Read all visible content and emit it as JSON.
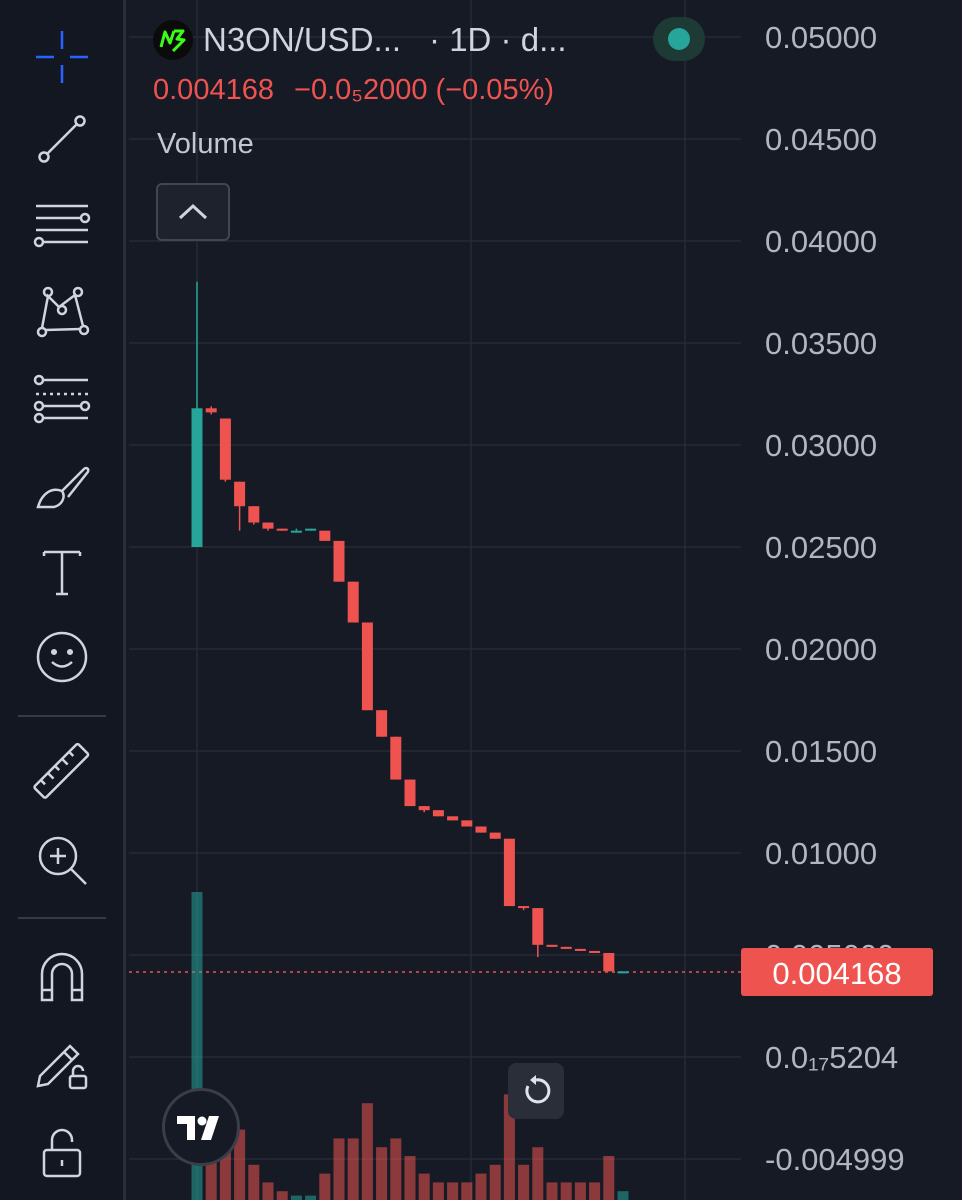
{
  "legend": {
    "symbol": "N3ON/USD...",
    "interval_text": "· 1D · d...",
    "last_price": "0.004168",
    "change": "−0.0₅2000 (−0.05%)",
    "indicator": "Volume"
  },
  "colors": {
    "background": "#161a25",
    "toolbar": "#131722",
    "up": "#26a69a",
    "down": "#ef5350",
    "grid": "#252a36",
    "axis_text": "#b2b5be"
  },
  "icons": {
    "logo": "n3on-coin-logo",
    "collapse": "chevron-up-icon",
    "reset": "reset-chart-icon",
    "brand": "tradingview-logo"
  },
  "toolbar": [
    {
      "name": "crosshair-icon"
    },
    {
      "name": "trend-line-icon"
    },
    {
      "name": "horizontal-lines-icon"
    },
    {
      "name": "pattern-icon"
    },
    {
      "name": "fib-retracement-icon"
    },
    {
      "name": "brush-icon"
    },
    {
      "name": "text-icon"
    },
    {
      "name": "emoji-icon"
    },
    {
      "name": "ruler-icon"
    },
    {
      "name": "zoom-in-icon"
    },
    {
      "name": "magnet-icon"
    },
    {
      "name": "lock-drawings-icon"
    },
    {
      "name": "lock-icon"
    }
  ],
  "chart_data": {
    "type": "candlestick",
    "y_ticks": [
      "0.05000",
      "0.04500",
      "0.04000",
      "0.03500",
      "0.03000",
      "0.02500",
      "0.02000",
      "0.01500",
      "0.01000",
      "0.005000",
      "0.0₁₇5204",
      "-0.004999"
    ],
    "ylim": [
      -0.004999,
      0.05
    ],
    "last_price_label": "0.004168",
    "last_price": 0.004168,
    "grid": true,
    "candles": [
      {
        "o": 0.025,
        "h": 0.038,
        "l": 0.025,
        "c": 0.0318,
        "v": 0.35
      },
      {
        "o": 0.0318,
        "h": 0.0319,
        "l": 0.0315,
        "c": 0.0316,
        "v": 0.05
      },
      {
        "o": 0.0313,
        "h": 0.0313,
        "l": 0.0282,
        "c": 0.0283,
        "v": 0.07
      },
      {
        "o": 0.0282,
        "h": 0.0282,
        "l": 0.0258,
        "c": 0.027,
        "v": 0.08
      },
      {
        "o": 0.027,
        "h": 0.027,
        "l": 0.0261,
        "c": 0.0262,
        "v": 0.04
      },
      {
        "o": 0.0262,
        "h": 0.0262,
        "l": 0.0258,
        "c": 0.0259,
        "v": 0.02
      },
      {
        "o": 0.0259,
        "h": 0.0259,
        "l": 0.0258,
        "c": 0.0258,
        "v": 0.01
      },
      {
        "o": 0.0258,
        "h": 0.0259,
        "l": 0.0258,
        "c": 0.0258,
        "v": 0.005
      },
      {
        "o": 0.0258,
        "h": 0.0259,
        "l": 0.0258,
        "c": 0.0259,
        "v": 0.005
      },
      {
        "o": 0.0258,
        "h": 0.0258,
        "l": 0.0253,
        "c": 0.0253,
        "v": 0.03
      },
      {
        "o": 0.0253,
        "h": 0.0253,
        "l": 0.0233,
        "c": 0.0233,
        "v": 0.07
      },
      {
        "o": 0.0233,
        "h": 0.0233,
        "l": 0.0213,
        "c": 0.0213,
        "v": 0.07
      },
      {
        "o": 0.0213,
        "h": 0.0213,
        "l": 0.017,
        "c": 0.017,
        "v": 0.11
      },
      {
        "o": 0.017,
        "h": 0.017,
        "l": 0.0157,
        "c": 0.0157,
        "v": 0.06
      },
      {
        "o": 0.0157,
        "h": 0.0157,
        "l": 0.0136,
        "c": 0.0136,
        "v": 0.07
      },
      {
        "o": 0.0136,
        "h": 0.0136,
        "l": 0.0123,
        "c": 0.0123,
        "v": 0.05
      },
      {
        "o": 0.0123,
        "h": 0.0123,
        "l": 0.012,
        "c": 0.0121,
        "v": 0.03
      },
      {
        "o": 0.0121,
        "h": 0.0121,
        "l": 0.0118,
        "c": 0.0118,
        "v": 0.02
      },
      {
        "o": 0.0118,
        "h": 0.0118,
        "l": 0.0116,
        "c": 0.0116,
        "v": 0.02
      },
      {
        "o": 0.0116,
        "h": 0.0116,
        "l": 0.0113,
        "c": 0.0113,
        "v": 0.02
      },
      {
        "o": 0.0113,
        "h": 0.0113,
        "l": 0.011,
        "c": 0.011,
        "v": 0.03
      },
      {
        "o": 0.011,
        "h": 0.011,
        "l": 0.0107,
        "c": 0.0107,
        "v": 0.04
      },
      {
        "o": 0.0107,
        "h": 0.0107,
        "l": 0.0074,
        "c": 0.0074,
        "v": 0.12
      },
      {
        "o": 0.0074,
        "h": 0.0074,
        "l": 0.0072,
        "c": 0.0073,
        "v": 0.04
      },
      {
        "o": 0.0073,
        "h": 0.0073,
        "l": 0.0049,
        "c": 0.0055,
        "v": 0.06
      },
      {
        "o": 0.0055,
        "h": 0.0055,
        "l": 0.0054,
        "c": 0.0054,
        "v": 0.02
      },
      {
        "o": 0.0054,
        "h": 0.0054,
        "l": 0.0053,
        "c": 0.0053,
        "v": 0.02
      },
      {
        "o": 0.0053,
        "h": 0.0053,
        "l": 0.0052,
        "c": 0.0052,
        "v": 0.02
      },
      {
        "o": 0.0052,
        "h": 0.0052,
        "l": 0.0051,
        "c": 0.0051,
        "v": 0.02
      },
      {
        "o": 0.0051,
        "h": 0.0051,
        "l": 0.0042,
        "c": 0.0042,
        "v": 0.05
      },
      {
        "o": 0.0042,
        "h": 0.0042,
        "l": 0.0041,
        "c": 0.0042,
        "v": 0.01
      }
    ]
  }
}
